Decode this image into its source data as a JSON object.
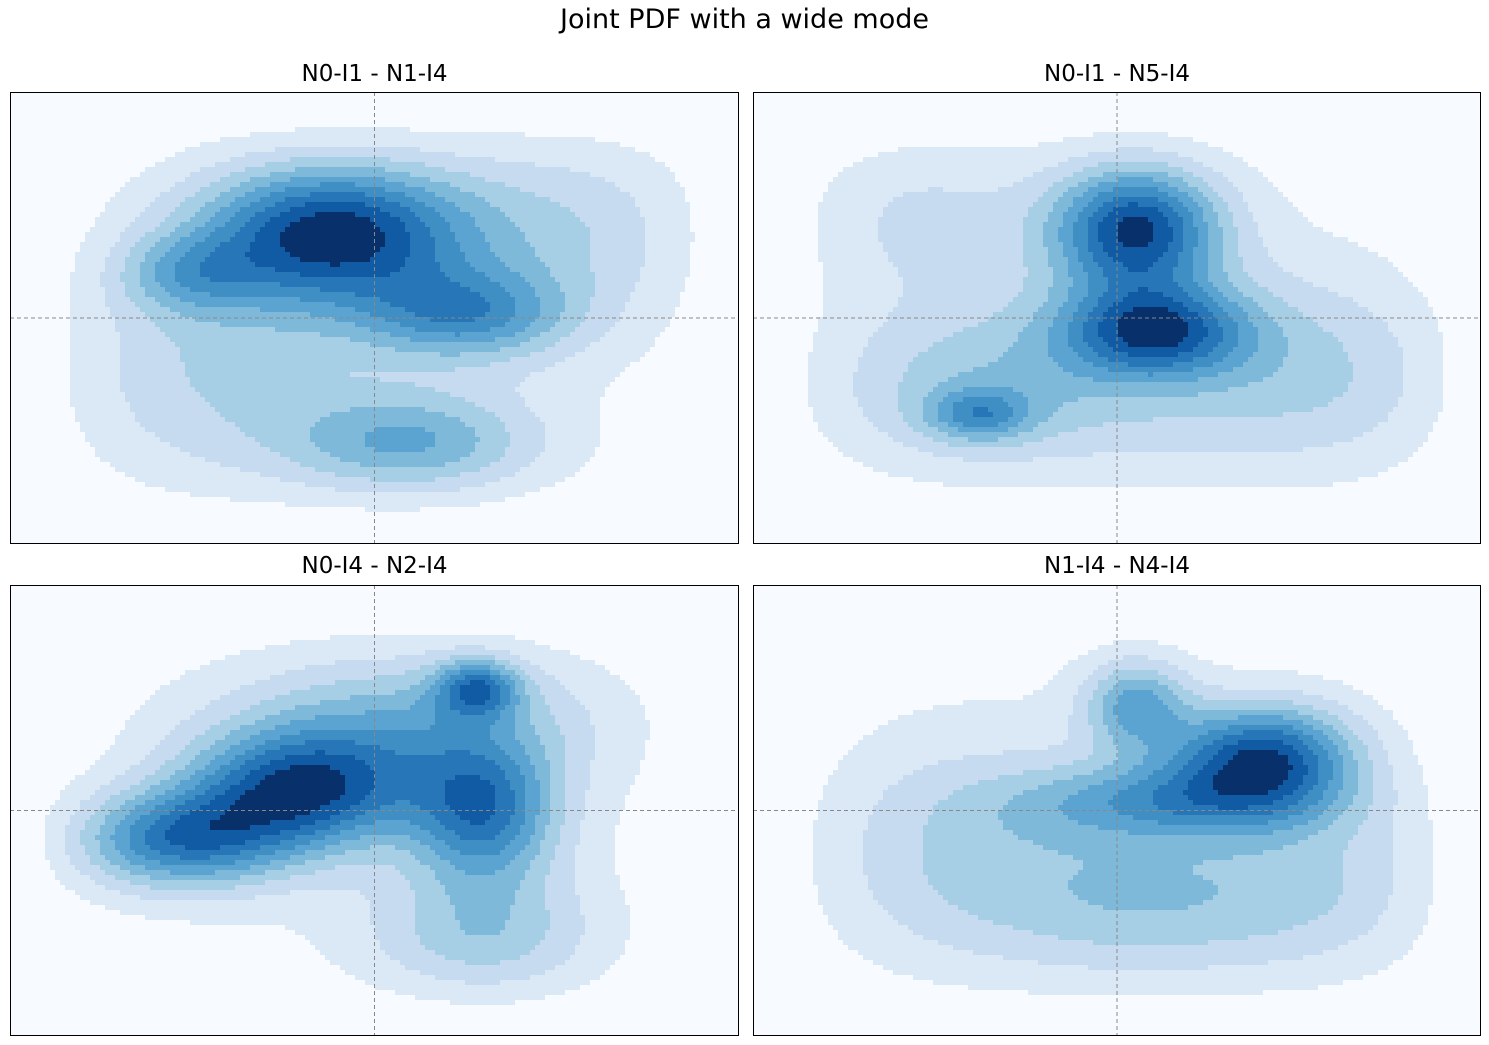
{
  "figure": {
    "title": "Joint PDF with a wide mode"
  },
  "colors": {
    "levels": [
      "#f7fbff",
      "#dbe9f6",
      "#c6dbef",
      "#a6cee4",
      "#7fb9da",
      "#5ba3d0",
      "#3f8fc5",
      "#2676b8",
      "#105ba4",
      "#08306b"
    ],
    "crosshair": "#888888",
    "frame": "#000000"
  },
  "chart_data": [
    {
      "type": "contour",
      "title": "N0-I1 - N1-I4",
      "crosshair": {
        "x": 0.0,
        "y": 0.0
      },
      "xlim": [
        -1,
        1
      ],
      "ylim": [
        -1,
        1
      ],
      "levels": 10,
      "modes": [
        {
          "x": -0.12,
          "y": 0.38,
          "sx": 0.26,
          "sy": 0.22,
          "w": 1.0
        },
        {
          "x": -0.52,
          "y": 0.2,
          "sx": 0.14,
          "sy": 0.12,
          "w": 0.35
        },
        {
          "x": 0.25,
          "y": 0.02,
          "sx": 0.2,
          "sy": 0.14,
          "w": 0.55
        },
        {
          "x": 0.1,
          "y": -0.55,
          "sx": 0.24,
          "sy": 0.16,
          "w": 0.5
        },
        {
          "x": -0.45,
          "y": -0.25,
          "sx": 0.3,
          "sy": 0.35,
          "w": 0.25
        },
        {
          "x": 0.55,
          "y": 0.4,
          "sx": 0.3,
          "sy": 0.3,
          "w": 0.25
        }
      ]
    },
    {
      "type": "contour",
      "title": "N0-I1 - N5-I4",
      "crosshair": {
        "x": 0.0,
        "y": 0.0
      },
      "xlim": [
        -1,
        1
      ],
      "ylim": [
        -1,
        1
      ],
      "levels": 10,
      "modes": [
        {
          "x": 0.05,
          "y": 0.4,
          "sx": 0.16,
          "sy": 0.2,
          "w": 1.0
        },
        {
          "x": 0.1,
          "y": -0.05,
          "sx": 0.18,
          "sy": 0.14,
          "w": 0.8
        },
        {
          "x": -0.38,
          "y": -0.42,
          "sx": 0.1,
          "sy": 0.08,
          "w": 0.45
        },
        {
          "x": -0.35,
          "y": -0.3,
          "sx": 0.35,
          "sy": 0.25,
          "w": 0.35
        },
        {
          "x": 0.55,
          "y": -0.25,
          "sx": 0.35,
          "sy": 0.3,
          "w": 0.3
        },
        {
          "x": -0.55,
          "y": 0.45,
          "sx": 0.25,
          "sy": 0.25,
          "w": 0.2
        }
      ]
    },
    {
      "type": "contour",
      "title": "N0-I4 - N2-I4",
      "crosshair": {
        "x": 0.0,
        "y": 0.0
      },
      "xlim": [
        -1,
        1
      ],
      "ylim": [
        -1,
        1
      ],
      "levels": 10,
      "modes": [
        {
          "x": -0.55,
          "y": -0.12,
          "sx": 0.22,
          "sy": 0.15,
          "w": 0.85
        },
        {
          "x": -0.2,
          "y": 0.1,
          "sx": 0.22,
          "sy": 0.18,
          "w": 0.95
        },
        {
          "x": 0.3,
          "y": 0.0,
          "sx": 0.14,
          "sy": 0.22,
          "w": 0.8
        },
        {
          "x": 0.28,
          "y": 0.55,
          "sx": 0.08,
          "sy": 0.09,
          "w": 0.7
        },
        {
          "x": 0.1,
          "y": 0.4,
          "sx": 0.35,
          "sy": 0.22,
          "w": 0.45
        },
        {
          "x": 0.3,
          "y": -0.55,
          "sx": 0.22,
          "sy": 0.2,
          "w": 0.4
        }
      ]
    },
    {
      "type": "contour",
      "title": "N1-I4 - N4-I4",
      "crosshair": {
        "x": 0.0,
        "y": 0.0
      },
      "xlim": [
        -1,
        1
      ],
      "ylim": [
        -1,
        1
      ],
      "levels": 10,
      "modes": [
        {
          "x": 0.4,
          "y": 0.25,
          "sx": 0.18,
          "sy": 0.16,
          "w": 1.0
        },
        {
          "x": 0.05,
          "y": 0.48,
          "sx": 0.1,
          "sy": 0.14,
          "w": 0.6
        },
        {
          "x": 0.15,
          "y": 0.05,
          "sx": 0.3,
          "sy": 0.12,
          "w": 0.55
        },
        {
          "x": 0.1,
          "y": -0.4,
          "sx": 0.3,
          "sy": 0.25,
          "w": 0.35
        },
        {
          "x": -0.45,
          "y": -0.2,
          "sx": 0.3,
          "sy": 0.35,
          "w": 0.28
        },
        {
          "x": 0.6,
          "y": -0.3,
          "sx": 0.25,
          "sy": 0.3,
          "w": 0.25
        }
      ]
    }
  ]
}
